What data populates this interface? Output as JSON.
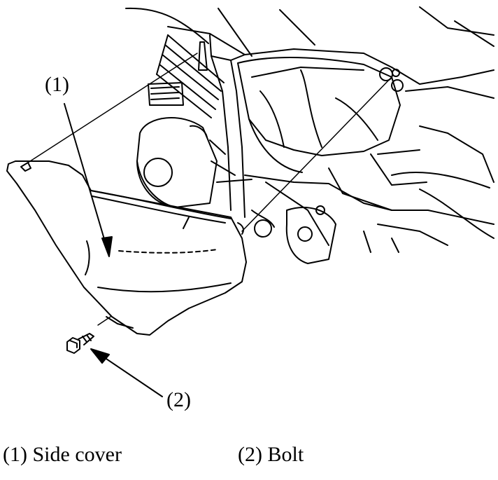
{
  "callouts": {
    "side_cover": "(1)",
    "bolt": "(2)"
  },
  "legend": {
    "side_cover": "(1) Side cover",
    "bolt": "(2) Bolt"
  },
  "colors": {
    "line": "#000000",
    "background": "#ffffff"
  }
}
